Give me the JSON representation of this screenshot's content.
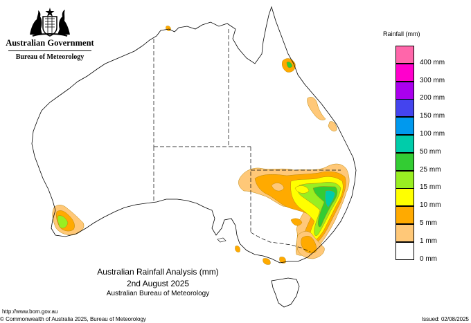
{
  "header": {
    "government": "Australian Government",
    "bureau": "Bureau of Meteorology"
  },
  "legend": {
    "title": "Rainfall (mm)",
    "items": [
      {
        "label": "",
        "color": "#ff66aa"
      },
      {
        "label": "400 mm",
        "color": "#ff00cc"
      },
      {
        "label": "300 mm",
        "color": "#aa00ee"
      },
      {
        "label": "200 mm",
        "color": "#4444ee"
      },
      {
        "label": "150 mm",
        "color": "#0099ee"
      },
      {
        "label": "100 mm",
        "color": "#00ccaa"
      },
      {
        "label": "50 mm",
        "color": "#33cc33"
      },
      {
        "label": "25 mm",
        "color": "#99ee22"
      },
      {
        "label": "15 mm",
        "color": "#ffff00"
      },
      {
        "label": "10 mm",
        "color": "#ffaa00"
      },
      {
        "label": "5 mm",
        "color": "#ffc878"
      },
      {
        "label": "1 mm",
        "color": "#ffffff"
      },
      {
        "label": "0 mm",
        "color": ""
      }
    ]
  },
  "title": {
    "line1": "Australian Rainfall Analysis (mm)",
    "line2": "2nd August 2025",
    "line3": "Australian Bureau of Meteorology"
  },
  "footer": {
    "url": "http://www.bom.gov.au",
    "copyright": "© Commonwealth of Australia 2025, Bureau of Meteorology",
    "issued": "Issued: 02/08/2025"
  },
  "map": {
    "region": "Australia",
    "colors": {
      "outline": "#000000",
      "state_border": "#000000",
      "rain_1mm": "#ffc878",
      "rain_5mm": "#ffaa00",
      "rain_10mm": "#ffff00",
      "rain_15mm": "#99ee22",
      "rain_25mm": "#33cc33",
      "rain_50mm": "#00ccaa"
    }
  }
}
